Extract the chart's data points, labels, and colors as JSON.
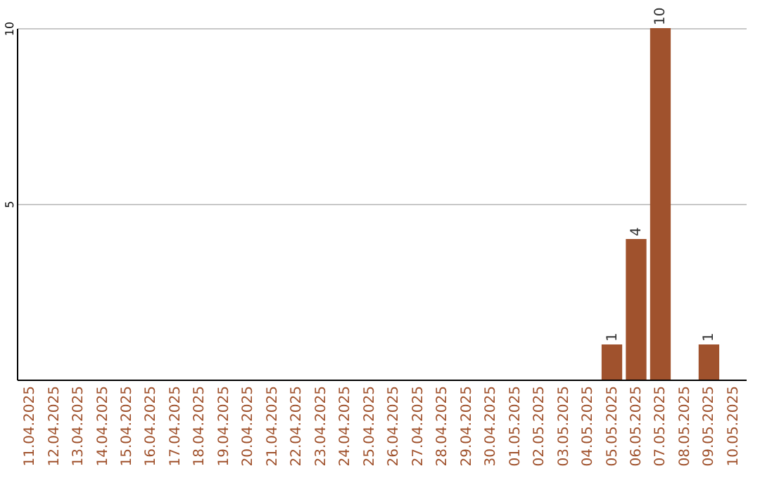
{
  "chart_data": {
    "type": "bar",
    "categories": [
      "11.04.2025",
      "12.04.2025",
      "13.04.2025",
      "14.04.2025",
      "15.04.2025",
      "16.04.2025",
      "17.04.2025",
      "18.04.2025",
      "19.04.2025",
      "20.04.2025",
      "21.04.2025",
      "22.04.2025",
      "23.04.2025",
      "24.04.2025",
      "25.04.2025",
      "26.04.2025",
      "27.04.2025",
      "28.04.2025",
      "29.04.2025",
      "30.04.2025",
      "01.05.2025",
      "02.05.2025",
      "03.05.2025",
      "04.05.2025",
      "05.05.2025",
      "06.05.2025",
      "07.05.2025",
      "08.05.2025",
      "09.05.2025",
      "10.05.2025"
    ],
    "values": [
      null,
      null,
      null,
      null,
      null,
      null,
      null,
      null,
      null,
      null,
      null,
      null,
      null,
      null,
      null,
      null,
      null,
      null,
      null,
      null,
      null,
      null,
      null,
      null,
      1,
      4,
      10,
      null,
      1,
      null
    ],
    "color": "#a0522d",
    "ylim": [
      0,
      10
    ],
    "yticks": [
      5,
      10
    ],
    "grid": "y",
    "data_labels": true
  }
}
